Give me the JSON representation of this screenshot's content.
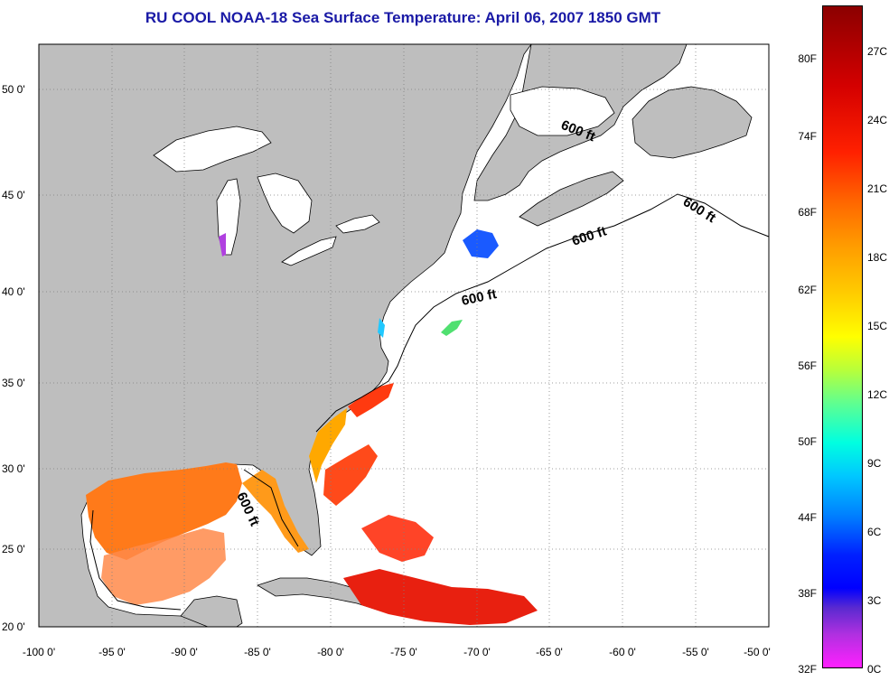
{
  "title": "RU COOL  NOAA-18  Sea Surface Temperature:  April 06, 2007 1850 GMT",
  "map": {
    "lon_range": [
      -100,
      -50
    ],
    "lat_range": [
      20,
      52.5
    ],
    "lat_ticks": [
      "20 0'",
      "25 0'",
      "30 0'",
      "35 0'",
      "40 0'",
      "45 0'",
      "50 0'"
    ],
    "lon_ticks": [
      "-100 0'",
      "-95 0'",
      "-90 0'",
      "-85 0'",
      "-80 0'",
      "-75 0'",
      "-70 0'",
      "-65 0'",
      "-60 0'",
      "-55 0'",
      "-50 0'"
    ],
    "contour_labels": [
      "600 ft",
      "600 ft",
      "600 ft",
      "600 ft",
      "600 ft"
    ],
    "colors": {
      "land": "#bebebe",
      "ocean_nodata": "#ffffff",
      "grid": "#808080"
    }
  },
  "colorbar": {
    "fahrenheit_labels": [
      "80F",
      "74F",
      "68F",
      "62F",
      "56F",
      "50F",
      "44F",
      "38F",
      "32F"
    ],
    "celsius_labels": [
      "27C",
      "24C",
      "21C",
      "18C",
      "15C",
      "12C",
      "9C",
      "6C",
      "3C",
      "0C"
    ],
    "range_c": [
      0,
      29
    ]
  }
}
